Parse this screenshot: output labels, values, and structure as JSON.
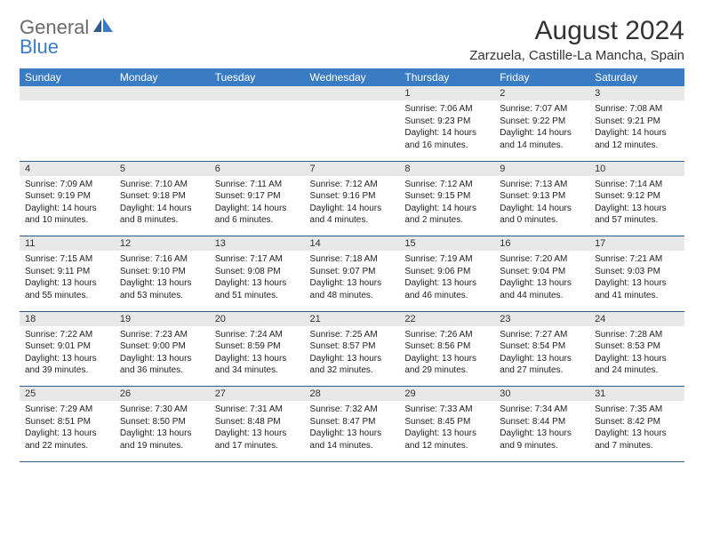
{
  "logo": {
    "general": "General",
    "blue": "Blue"
  },
  "header": {
    "title": "August 2024",
    "subtitle": "Zarzuela, Castille-La Mancha, Spain"
  },
  "colors": {
    "header_bg": "#3a7cc4",
    "header_fg": "#ffffff",
    "daynum_bg": "#e8e8e8",
    "rule": "#2f5b88",
    "text": "#333333"
  },
  "weekdays": [
    "Sunday",
    "Monday",
    "Tuesday",
    "Wednesday",
    "Thursday",
    "Friday",
    "Saturday"
  ],
  "weeks": [
    {
      "nums": [
        "",
        "",
        "",
        "",
        "1",
        "2",
        "3"
      ],
      "sunrise": [
        "",
        "",
        "",
        "",
        "Sunrise: 7:06 AM",
        "Sunrise: 7:07 AM",
        "Sunrise: 7:08 AM"
      ],
      "sunset": [
        "",
        "",
        "",
        "",
        "Sunset: 9:23 PM",
        "Sunset: 9:22 PM",
        "Sunset: 9:21 PM"
      ],
      "day1": [
        "",
        "",
        "",
        "",
        "Daylight: 14 hours",
        "Daylight: 14 hours",
        "Daylight: 14 hours"
      ],
      "day2": [
        "",
        "",
        "",
        "",
        "and 16 minutes.",
        "and 14 minutes.",
        "and 12 minutes."
      ]
    },
    {
      "nums": [
        "4",
        "5",
        "6",
        "7",
        "8",
        "9",
        "10"
      ],
      "sunrise": [
        "Sunrise: 7:09 AM",
        "Sunrise: 7:10 AM",
        "Sunrise: 7:11 AM",
        "Sunrise: 7:12 AM",
        "Sunrise: 7:12 AM",
        "Sunrise: 7:13 AM",
        "Sunrise: 7:14 AM"
      ],
      "sunset": [
        "Sunset: 9:19 PM",
        "Sunset: 9:18 PM",
        "Sunset: 9:17 PM",
        "Sunset: 9:16 PM",
        "Sunset: 9:15 PM",
        "Sunset: 9:13 PM",
        "Sunset: 9:12 PM"
      ],
      "day1": [
        "Daylight: 14 hours",
        "Daylight: 14 hours",
        "Daylight: 14 hours",
        "Daylight: 14 hours",
        "Daylight: 14 hours",
        "Daylight: 14 hours",
        "Daylight: 13 hours"
      ],
      "day2": [
        "and 10 minutes.",
        "and 8 minutes.",
        "and 6 minutes.",
        "and 4 minutes.",
        "and 2 minutes.",
        "and 0 minutes.",
        "and 57 minutes."
      ]
    },
    {
      "nums": [
        "11",
        "12",
        "13",
        "14",
        "15",
        "16",
        "17"
      ],
      "sunrise": [
        "Sunrise: 7:15 AM",
        "Sunrise: 7:16 AM",
        "Sunrise: 7:17 AM",
        "Sunrise: 7:18 AM",
        "Sunrise: 7:19 AM",
        "Sunrise: 7:20 AM",
        "Sunrise: 7:21 AM"
      ],
      "sunset": [
        "Sunset: 9:11 PM",
        "Sunset: 9:10 PM",
        "Sunset: 9:08 PM",
        "Sunset: 9:07 PM",
        "Sunset: 9:06 PM",
        "Sunset: 9:04 PM",
        "Sunset: 9:03 PM"
      ],
      "day1": [
        "Daylight: 13 hours",
        "Daylight: 13 hours",
        "Daylight: 13 hours",
        "Daylight: 13 hours",
        "Daylight: 13 hours",
        "Daylight: 13 hours",
        "Daylight: 13 hours"
      ],
      "day2": [
        "and 55 minutes.",
        "and 53 minutes.",
        "and 51 minutes.",
        "and 48 minutes.",
        "and 46 minutes.",
        "and 44 minutes.",
        "and 41 minutes."
      ]
    },
    {
      "nums": [
        "18",
        "19",
        "20",
        "21",
        "22",
        "23",
        "24"
      ],
      "sunrise": [
        "Sunrise: 7:22 AM",
        "Sunrise: 7:23 AM",
        "Sunrise: 7:24 AM",
        "Sunrise: 7:25 AM",
        "Sunrise: 7:26 AM",
        "Sunrise: 7:27 AM",
        "Sunrise: 7:28 AM"
      ],
      "sunset": [
        "Sunset: 9:01 PM",
        "Sunset: 9:00 PM",
        "Sunset: 8:59 PM",
        "Sunset: 8:57 PM",
        "Sunset: 8:56 PM",
        "Sunset: 8:54 PM",
        "Sunset: 8:53 PM"
      ],
      "day1": [
        "Daylight: 13 hours",
        "Daylight: 13 hours",
        "Daylight: 13 hours",
        "Daylight: 13 hours",
        "Daylight: 13 hours",
        "Daylight: 13 hours",
        "Daylight: 13 hours"
      ],
      "day2": [
        "and 39 minutes.",
        "and 36 minutes.",
        "and 34 minutes.",
        "and 32 minutes.",
        "and 29 minutes.",
        "and 27 minutes.",
        "and 24 minutes."
      ]
    },
    {
      "nums": [
        "25",
        "26",
        "27",
        "28",
        "29",
        "30",
        "31"
      ],
      "sunrise": [
        "Sunrise: 7:29 AM",
        "Sunrise: 7:30 AM",
        "Sunrise: 7:31 AM",
        "Sunrise: 7:32 AM",
        "Sunrise: 7:33 AM",
        "Sunrise: 7:34 AM",
        "Sunrise: 7:35 AM"
      ],
      "sunset": [
        "Sunset: 8:51 PM",
        "Sunset: 8:50 PM",
        "Sunset: 8:48 PM",
        "Sunset: 8:47 PM",
        "Sunset: 8:45 PM",
        "Sunset: 8:44 PM",
        "Sunset: 8:42 PM"
      ],
      "day1": [
        "Daylight: 13 hours",
        "Daylight: 13 hours",
        "Daylight: 13 hours",
        "Daylight: 13 hours",
        "Daylight: 13 hours",
        "Daylight: 13 hours",
        "Daylight: 13 hours"
      ],
      "day2": [
        "and 22 minutes.",
        "and 19 minutes.",
        "and 17 minutes.",
        "and 14 minutes.",
        "and 12 minutes.",
        "and 9 minutes.",
        "and 7 minutes."
      ]
    }
  ]
}
